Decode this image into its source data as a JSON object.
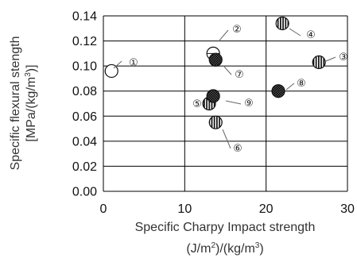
{
  "chart_data": {
    "type": "scatter",
    "title": "",
    "xlabel_line1": "Specific Charpy Impact strength",
    "xlabel_line2_parts": [
      "(J/m",
      "2",
      ")/(kg/m",
      "3",
      ")"
    ],
    "ylabel_line1": "Specific flexural stength",
    "ylabel_line2_parts": [
      "[MPa/(kg/m",
      "3",
      ")]"
    ],
    "xlim": [
      0,
      30
    ],
    "ylim": [
      0.0,
      0.14
    ],
    "x_ticks": [
      0,
      10,
      20,
      30
    ],
    "x_tick_labels": [
      "0",
      "10",
      "20",
      "30"
    ],
    "y_ticks": [
      0.0,
      0.02,
      0.04,
      0.06,
      0.08,
      0.1,
      0.12,
      0.14
    ],
    "y_tick_labels": [
      "0.00",
      "0.02",
      "0.04",
      "0.06",
      "0.08",
      "0.10",
      "0.12",
      "0.14"
    ],
    "grid": true,
    "legend": "none",
    "marker_styles": {
      "open": "#ffffff",
      "vertical_stripes": "#111111",
      "crosshatch": "#111111"
    },
    "points": [
      {
        "label": "①",
        "x": 1.0,
        "y": 0.096,
        "marker": "open"
      },
      {
        "label": "②",
        "x": 13.5,
        "y": 0.11,
        "marker": "open_cross"
      },
      {
        "label": "③",
        "x": 26.5,
        "y": 0.103,
        "marker": "vertical_stripes"
      },
      {
        "label": "④",
        "x": 22.0,
        "y": 0.134,
        "marker": "vertical_stripes"
      },
      {
        "label": "⑤",
        "x": 13.0,
        "y": 0.07,
        "marker": "vertical_stripes"
      },
      {
        "label": "⑥",
        "x": 13.8,
        "y": 0.055,
        "marker": "vertical_stripes"
      },
      {
        "label": "⑦",
        "x": 13.8,
        "y": 0.105,
        "marker": "crosshatch"
      },
      {
        "label": "⑧",
        "x": 21.5,
        "y": 0.08,
        "marker": "crosshatch"
      },
      {
        "label": "⑨",
        "x": 13.5,
        "y": 0.076,
        "marker": "crosshatch"
      }
    ]
  }
}
